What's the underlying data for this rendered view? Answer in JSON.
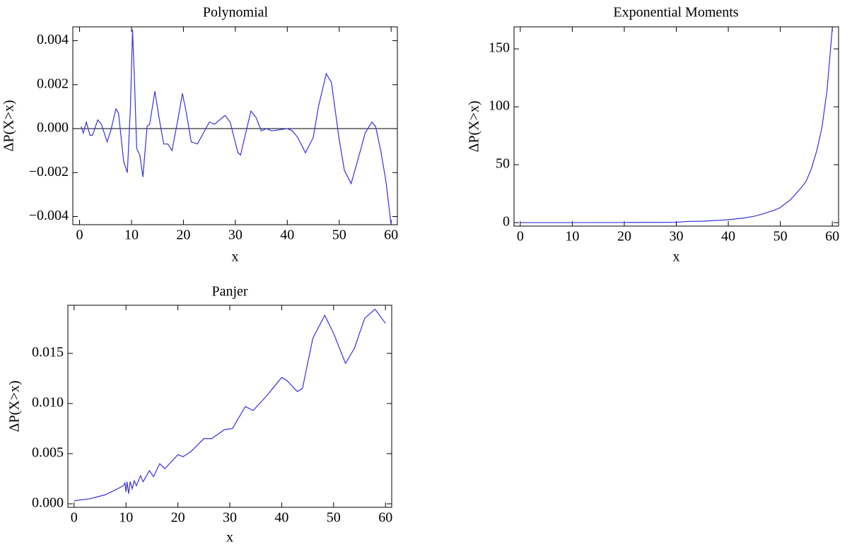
{
  "chart_data": [
    {
      "type": "line",
      "title": "Polynomial",
      "xlabel": "x",
      "ylabel": "ΔP(X>x)",
      "x": [
        0.3,
        0.7,
        1.3,
        2,
        2.5,
        3.5,
        4.2,
        5.3,
        6,
        7,
        7.5,
        8.5,
        9.2,
        9.8,
        10.2,
        10.6,
        11,
        11.6,
        12.2,
        13,
        13.5,
        14.5,
        15.3,
        16.2,
        17,
        17.8,
        19,
        19.8,
        20.5,
        21.5,
        22.7,
        25,
        26,
        28,
        29,
        30.5,
        31,
        33,
        34,
        35,
        36,
        37,
        40,
        41,
        42,
        43.5,
        45,
        46,
        47.5,
        48.5,
        50,
        51,
        52.3,
        53.5,
        55,
        56.3,
        57,
        58,
        59,
        60
      ],
      "values": [
        0.0001,
        -0.0002,
        0.0003,
        -0.0003,
        -0.0003,
        0.0004,
        0.0002,
        -0.0006,
        -0.0001,
        0.0009,
        0.0007,
        -0.0015,
        -0.002,
        0.001,
        0.0045,
        0.002,
        -0.0009,
        -0.0012,
        -0.0022,
        0.0001,
        0.0002,
        0.0017,
        0.0005,
        -0.0007,
        -0.0007,
        -0.001,
        0.0005,
        0.0016,
        0.0008,
        -0.0006,
        -0.0007,
        0.0003,
        0.0002,
        0.0006,
        0.0003,
        -0.0011,
        -0.0012,
        0.0008,
        0.0005,
        -0.0001,
        0,
        -0.0001,
        0,
        -0.0001,
        -0.0004,
        -0.0011,
        -0.0004,
        0.001,
        0.0025,
        0.0021,
        -0.0005,
        -0.0019,
        -0.0025,
        -0.0015,
        -0.0002,
        0.0003,
        0.0001,
        -0.001,
        -0.0024,
        -0.0044
      ],
      "color": "#3b2fe0",
      "zero_line": true,
      "xlim": [
        -1.3,
        61.2
      ],
      "xticks": [
        0,
        10,
        20,
        30,
        40,
        50,
        60
      ],
      "ylim": [
        -0.00437,
        0.00463
      ],
      "yticks": [
        {
          "value": -0.004,
          "label": "−0.004"
        },
        {
          "value": -0.002,
          "label": "−0.002"
        },
        {
          "value": 0,
          "label": "0.000"
        },
        0.002,
        0.004
      ]
    },
    {
      "type": "line",
      "title": "Exponential Moments",
      "xlabel": "x",
      "ylabel": "ΔP(X>x)",
      "x": [
        0,
        10,
        20,
        30,
        32,
        35,
        40,
        43,
        45,
        47,
        49,
        50,
        52,
        54,
        55,
        56,
        57,
        58,
        59,
        60
      ],
      "values": [
        0,
        0,
        0.1,
        0.3,
        1,
        1.2,
        2.5,
        4,
        5.5,
        8,
        11,
        13,
        20,
        30,
        36,
        47,
        62,
        82,
        115,
        168
      ],
      "color": "#3b2fe0",
      "xlim": [
        -1.2,
        61.2
      ],
      "xticks": [
        0,
        10,
        20,
        30,
        40,
        50,
        60
      ],
      "ylim": [
        -3,
        169
      ],
      "yticks": [
        0,
        50,
        100,
        150
      ]
    },
    {
      "type": "line",
      "title": "Panjer",
      "xlabel": "x",
      "ylabel": "ΔP(X>x)",
      "x": [
        0,
        3,
        6,
        8,
        9.5,
        9.8,
        10,
        10.2,
        10.5,
        10.8,
        11.2,
        11.6,
        12,
        12.8,
        13.3,
        14.5,
        15.3,
        16.5,
        17.5,
        20,
        21,
        22.5,
        25,
        26.5,
        29,
        30.5,
        33,
        34.5,
        37,
        40,
        41,
        43,
        44,
        46,
        48.3,
        50,
        52.3,
        54,
        56,
        58,
        60
      ],
      "values": [
        0.0003,
        0.0005,
        0.0009,
        0.0014,
        0.0018,
        0.0021,
        0.0012,
        0.0022,
        0.001,
        0.0022,
        0.0015,
        0.0023,
        0.0018,
        0.0028,
        0.0022,
        0.0033,
        0.0027,
        0.004,
        0.0035,
        0.0049,
        0.0047,
        0.0052,
        0.0065,
        0.0065,
        0.0074,
        0.0075,
        0.0097,
        0.0093,
        0.0107,
        0.0126,
        0.0123,
        0.0112,
        0.0115,
        0.0165,
        0.0188,
        0.017,
        0.014,
        0.0155,
        0.0185,
        0.0194,
        0.018
      ],
      "color": "#3b2fe0",
      "xlim": [
        -1.2,
        61.2
      ],
      "xticks": [
        0,
        10,
        20,
        30,
        40,
        50,
        60
      ],
      "ylim": [
        -0.00035,
        0.0198
      ],
      "yticks": [
        {
          "value": 0,
          "label": "0.000"
        },
        0.005,
        {
          "value": 0.01,
          "label": "0.010"
        },
        0.015
      ]
    }
  ]
}
